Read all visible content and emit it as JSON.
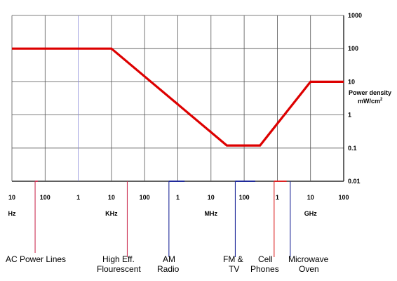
{
  "chart_data": {
    "type": "line",
    "title": "",
    "ylabel": "Power density",
    "ylabel_unit": "mW/cm",
    "ylabel_unit_sup": "2",
    "y_scale": "log",
    "ylim": [
      0.01,
      1000
    ],
    "y_ticks": [
      "1000",
      "100",
      "10",
      "1",
      "0.1",
      "0.01"
    ],
    "x_scale": "log",
    "x_unit": "Hz",
    "xlim": [
      10,
      100000000000
    ],
    "x_ticks": [
      {
        "label": "10",
        "value": 10
      },
      {
        "label": "100",
        "value": 100
      },
      {
        "label": "1",
        "value": 1000
      },
      {
        "label": "10",
        "value": 10000
      },
      {
        "label": "100",
        "value": 100000
      },
      {
        "label": "1",
        "value": 1000000
      },
      {
        "label": "10",
        "value": 10000000
      },
      {
        "label": "100",
        "value": 100000000
      },
      {
        "label": "1",
        "value": 1000000000
      },
      {
        "label": "10",
        "value": 10000000000
      },
      {
        "label": "100",
        "value": 100000000000
      }
    ],
    "x_units": [
      {
        "label": "Hz",
        "at": 10
      },
      {
        "label": "KHz",
        "at": 10000
      },
      {
        "label": "MHz",
        "at": 10000000
      },
      {
        "label": "GHz",
        "at": 10000000000
      }
    ],
    "grid": true,
    "series": [
      {
        "color": "#dd0000",
        "points": [
          {
            "x": 10,
            "y": 100
          },
          {
            "x": 10000,
            "y": 100
          },
          {
            "x": 30000000,
            "y": 0.12
          },
          {
            "x": 300000000,
            "y": 0.12
          },
          {
            "x": 10000000000,
            "y": 10
          },
          {
            "x": 100000000000,
            "y": 10
          }
        ]
      }
    ],
    "bands": [
      {
        "name": "AC Power Lines",
        "color": "#cc3355",
        "range": [
          50,
          60
        ]
      },
      {
        "name": "High Eff. Flourescent",
        "color": "#cc3355",
        "range": [
          30000,
          30000
        ]
      },
      {
        "name": "AM Radio",
        "color": "#1f2a99",
        "range": [
          540000,
          1600000
        ]
      },
      {
        "name": "FM & TV",
        "color": "#1f2a99",
        "range": [
          54000000,
          216000000
        ]
      },
      {
        "name": "Cell Phones",
        "color": "#dd2222",
        "range": [
          800000000,
          1900000000
        ]
      },
      {
        "name": "Microwave Oven",
        "color": "#1f2a99",
        "range": [
          2450000000,
          2450000000
        ]
      }
    ]
  },
  "labels": {
    "ac_power_lines": "AC Power Lines",
    "high_eff_line1": "High Eff.",
    "high_eff_line2": "Flourescent",
    "am_line1": "AM",
    "am_line2": "Radio",
    "fm_line1": "FM &",
    "fm_line2": "TV",
    "cell_line1": "Cell",
    "cell_line2": "Phones",
    "micro_line1": "Microwave",
    "micro_line2": "Oven"
  }
}
